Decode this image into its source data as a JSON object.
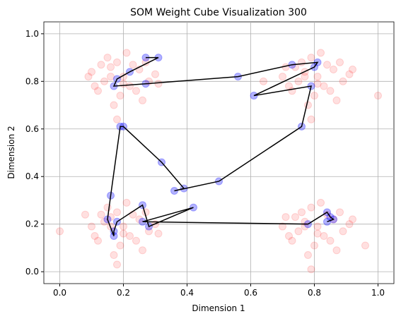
{
  "chart_data": {
    "type": "scatter",
    "title": "SOM Weight Cube Visualization 300",
    "x_label": "Dimension 1",
    "y_label": "Dimension 2",
    "grid": true,
    "xlim": [
      -0.05,
      1.05
    ],
    "ylim": [
      -0.05,
      1.05
    ],
    "xticks": [
      {
        "value": 0,
        "label": "0.0"
      },
      {
        "value": 0.2,
        "label": "0.2"
      },
      {
        "value": 0.4,
        "label": "0.4"
      },
      {
        "value": 0.6,
        "label": "0.6"
      },
      {
        "value": 0.8,
        "label": "0.8"
      },
      {
        "value": 1,
        "label": "1.0"
      }
    ],
    "yticks": [
      {
        "value": 0,
        "label": "0.0"
      },
      {
        "value": 0.2,
        "label": "0.2"
      },
      {
        "value": 0.4,
        "label": "0.4"
      },
      {
        "value": 0.6,
        "label": "0.6"
      },
      {
        "value": 0.8,
        "label": "0.8"
      },
      {
        "value": 1,
        "label": "1.0"
      }
    ],
    "series": [
      {
        "color": "#ff0000",
        "x": [
          0.1,
          0.14,
          0.16,
          0.18,
          0.2,
          0.22,
          0.25,
          0.28,
          0.12,
          0.15,
          0.19,
          0.23,
          0.26,
          0.3,
          0.09,
          0.17,
          0.21,
          0.24,
          0.13,
          0.27,
          0.2,
          0.16,
          0.11,
          0.31,
          0.18,
          0.71,
          0.75,
          0.77,
          0.79,
          0.81,
          0.83,
          0.86,
          0.89,
          0.73,
          0.76,
          0.8,
          0.84,
          0.87,
          0.91,
          0.7,
          0.78,
          0.82,
          0.85,
          0.74,
          0.88,
          0.81,
          0.77,
          0.72,
          0.92,
          0.79,
          0.64,
          1.0,
          0.0,
          0.08,
          0.14,
          0.16,
          0.18,
          0.2,
          0.22,
          0.25,
          0.28,
          0.12,
          0.15,
          0.19,
          0.23,
          0.26,
          0.3,
          0.1,
          0.17,
          0.21,
          0.24,
          0.13,
          0.27,
          0.2,
          0.16,
          0.11,
          0.31,
          0.18,
          0.71,
          0.75,
          0.77,
          0.79,
          0.81,
          0.83,
          0.86,
          0.89,
          0.73,
          0.76,
          0.8,
          0.84,
          0.87,
          0.91,
          0.7,
          0.78,
          0.82,
          0.85,
          0.74,
          0.88,
          0.81,
          0.77,
          0.72,
          0.92,
          0.79,
          0.96
        ],
        "y": [
          0.84,
          0.8,
          0.86,
          0.88,
          0.82,
          0.78,
          0.85,
          0.8,
          0.76,
          0.9,
          0.74,
          0.87,
          0.72,
          0.83,
          0.82,
          0.7,
          0.92,
          0.76,
          0.87,
          0.88,
          0.79,
          0.82,
          0.78,
          0.79,
          0.64,
          0.86,
          0.8,
          0.84,
          0.9,
          0.82,
          0.78,
          0.85,
          0.8,
          0.76,
          0.88,
          0.74,
          0.87,
          0.72,
          0.83,
          0.82,
          0.7,
          0.92,
          0.76,
          0.86,
          0.88,
          0.79,
          0.82,
          0.78,
          0.85,
          0.64,
          0.8,
          0.74,
          0.17,
          0.24,
          0.21,
          0.23,
          0.25,
          0.19,
          0.15,
          0.22,
          0.17,
          0.13,
          0.27,
          0.11,
          0.24,
          0.09,
          0.2,
          0.19,
          0.07,
          0.29,
          0.13,
          0.24,
          0.25,
          0.16,
          0.19,
          0.15,
          0.16,
          0.03,
          0.23,
          0.17,
          0.21,
          0.27,
          0.19,
          0.15,
          0.22,
          0.17,
          0.13,
          0.25,
          0.11,
          0.24,
          0.09,
          0.2,
          0.19,
          0.07,
          0.29,
          0.13,
          0.23,
          0.25,
          0.16,
          0.19,
          0.15,
          0.22,
          0.01,
          0.11
        ]
      },
      {
        "color": "#0000ff",
        "x": [
          0.27,
          0.31,
          0.22,
          0.18,
          0.17,
          0.27,
          0.56,
          0.73,
          0.81,
          0.8,
          0.61,
          0.79,
          0.76,
          0.5,
          0.36,
          0.39,
          0.32,
          0.2,
          0.19,
          0.16,
          0.15,
          0.17,
          0.17,
          0.18,
          0.26,
          0.28,
          0.42,
          0.26,
          0.78,
          0.84,
          0.85,
          0.86,
          0.84
        ],
        "y": [
          0.9,
          0.9,
          0.84,
          0.81,
          0.78,
          0.79,
          0.82,
          0.87,
          0.88,
          0.86,
          0.74,
          0.78,
          0.61,
          0.38,
          0.34,
          0.35,
          0.46,
          0.61,
          0.61,
          0.32,
          0.22,
          0.15,
          0.17,
          0.21,
          0.28,
          0.19,
          0.27,
          0.21,
          0.2,
          0.25,
          0.23,
          0.22,
          0.21
        ]
      }
    ]
  }
}
